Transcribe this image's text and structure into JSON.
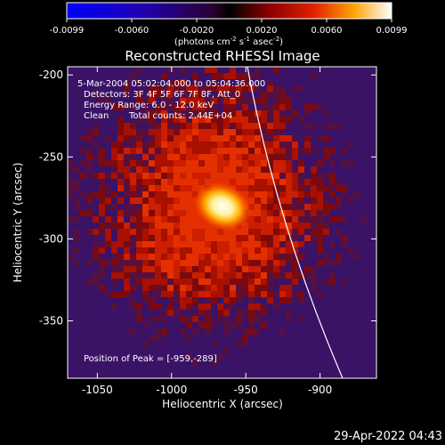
{
  "colorbar": {
    "ticks": [
      "-0.0099",
      "-0.0060",
      "-0.0020",
      "0.0020",
      "0.0060",
      "0.0099"
    ],
    "units_main": "(photons cm",
    "units_sup1": "-2",
    "units_mid": " s",
    "units_sup2": "-1",
    "units_end": " asec",
    "units_sup3": "-2",
    "units_close": ")"
  },
  "title": "Reconstructed RHESSI Image",
  "info": {
    "time_range": "5-Mar-2004 05:02:04.000 to 05:04:36.000",
    "detectors": "Detectors: 3F 4F 5F 6F 7F 8F, Att_0",
    "energy": "Energy Range: 6.0 - 12.0 keV",
    "clean": "Clean",
    "counts": "Total counts: 2.44E+04",
    "peak": "Position of Peak = [-959,-289]"
  },
  "chart_data": {
    "type": "heatmap",
    "title": "Reconstructed RHESSI Image",
    "xlabel": "Heliocentric X (arcsec)",
    "ylabel": "Heliocentric Y (arcsec)",
    "xlim": [
      -1070,
      -862
    ],
    "ylim": [
      -385,
      -195
    ],
    "x_ticks": [
      "-1050",
      "-1000",
      "-950",
      "-900"
    ],
    "y_ticks": [
      "-200",
      "-250",
      "-300",
      "-350"
    ],
    "peak": [
      -959,
      -289
    ],
    "color_scale": {
      "min": -0.0099,
      "max": 0.0099
    }
  },
  "footer": {
    "timestamp": "29-Apr-2022 04:43"
  }
}
